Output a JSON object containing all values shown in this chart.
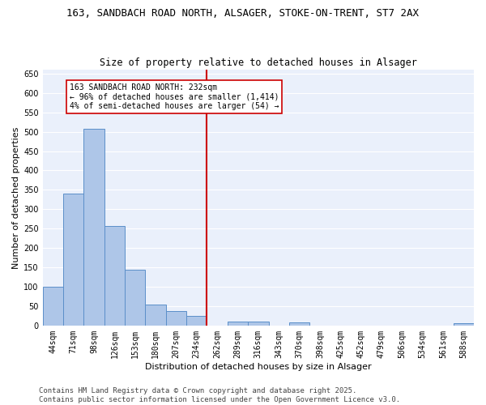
{
  "title1": "163, SANDBACH ROAD NORTH, ALSAGER, STOKE-ON-TRENT, ST7 2AX",
  "title2": "Size of property relative to detached houses in Alsager",
  "xlabel": "Distribution of detached houses by size in Alsager",
  "ylabel": "Number of detached properties",
  "categories": [
    "44sqm",
    "71sqm",
    "98sqm",
    "126sqm",
    "153sqm",
    "180sqm",
    "207sqm",
    "234sqm",
    "262sqm",
    "289sqm",
    "316sqm",
    "343sqm",
    "370sqm",
    "398sqm",
    "425sqm",
    "452sqm",
    "479sqm",
    "506sqm",
    "534sqm",
    "561sqm",
    "588sqm"
  ],
  "values": [
    100,
    340,
    507,
    257,
    144,
    54,
    38,
    24,
    0,
    10,
    10,
    0,
    7,
    0,
    0,
    0,
    0,
    0,
    0,
    0,
    5
  ],
  "bar_color": "#aec6e8",
  "bar_edge_color": "#5b8fc9",
  "vline_x": 7.5,
  "vline_color": "#cc0000",
  "annotation_text": "163 SANDBACH ROAD NORTH: 232sqm\n← 96% of detached houses are smaller (1,414)\n4% of semi-detached houses are larger (54) →",
  "annotation_box_color": "#ffffff",
  "annotation_box_edge": "#cc0000",
  "ylim": [
    0,
    660
  ],
  "yticks": [
    0,
    50,
    100,
    150,
    200,
    250,
    300,
    350,
    400,
    450,
    500,
    550,
    600,
    650
  ],
  "background_color": "#eaf0fb",
  "footer": "Contains HM Land Registry data © Crown copyright and database right 2025.\nContains public sector information licensed under the Open Government Licence v3.0.",
  "title_fontsize": 9,
  "subtitle_fontsize": 8.5,
  "axis_label_fontsize": 8,
  "tick_fontsize": 7,
  "footer_fontsize": 6.5
}
